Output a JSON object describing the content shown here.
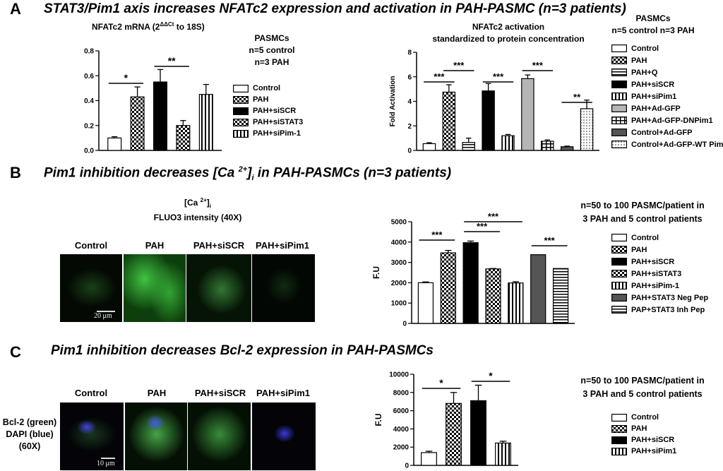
{
  "panels": {
    "A": {
      "letter": "A",
      "title": "STAT3/Pim1 axis increases NFATc2 expression and activation in PAH-PASMC (n=3 patients)"
    },
    "B": {
      "letter": "B",
      "title_pre": "Pim1 inhibition decreases [Ca ",
      "title_sup": "2+",
      "title_post": "]",
      "title_sub": "i",
      "title_end": " in PAH-PASMCs (n=3 patients)"
    },
    "C": {
      "letter": "C",
      "title": "Pim1 inhibition decreases Bcl-2 expression in PAH-PASMCs"
    }
  },
  "chartA1": {
    "heading_pre": "NFATc2 mRNA  (2",
    "heading_sup": "ΔΔCt",
    "heading_post": " to 18S)",
    "note1": "PASMCs",
    "note2": "n=5 control",
    "note3": "n=3 PAH"
  },
  "chartA2": {
    "heading1": "NFATc2 activation",
    "heading2": "standardized to protein concentration",
    "note1": "PASMCs",
    "note2": "n=5 control n=3 PAH"
  },
  "panelB": {
    "micro_title1_pre": "[Ca ",
    "micro_title1_sup": "2+",
    "micro_title1_post": "]",
    "micro_title1_sub": "i",
    "micro_title2": "FLUO3 intensity (40X)",
    "conditions": [
      "Control",
      "PAH",
      "PAH+siSCR",
      "PAH+siPim1"
    ],
    "scale_bar": "20 μm",
    "note1": "n=50 to 100 PASMC/patient  in",
    "note2": "3 PAH and 5 control patients"
  },
  "panelC": {
    "conditions": [
      "Control",
      "PAH",
      "PAH+siSCR",
      "PAH+siPim1"
    ],
    "stain1": "Bcl-2 (green)",
    "stain2": "DAPI (blue)",
    "stain3": "(60X)",
    "scale_bar": "10 μm",
    "note1": "n=50 to 100 PASMC/patient  in",
    "note2": "3 PAH and 5 control patients"
  },
  "chart_data": [
    {
      "type": "bar",
      "ylabel": "",
      "ylim": [
        0,
        0.8
      ],
      "yticks": [
        "0.0",
        "0.2",
        "0.4",
        "0.6",
        "0.8"
      ],
      "categories": [
        "Control",
        "PAH",
        "PAH+siSCR",
        "PAH+siSTAT3",
        "PAH+siPim-1"
      ],
      "values": [
        0.1,
        0.43,
        0.55,
        0.2,
        0.45
      ],
      "errors": [
        0.01,
        0.08,
        0.1,
        0.04,
        0.08
      ],
      "patterns": [
        "white",
        "check",
        "black",
        "check",
        "vstripe"
      ],
      "significance": [
        {
          "from": 0,
          "to": 1,
          "label": "*"
        },
        {
          "from": 2,
          "to": 3,
          "label": "**"
        }
      ],
      "legend": "right"
    },
    {
      "type": "bar",
      "ylabel": "Fold Activation",
      "ylim": [
        0,
        8
      ],
      "yticks": [
        "0",
        "2",
        "4",
        "6",
        "8"
      ],
      "categories": [
        "Control",
        "PAH",
        "PAH+Q",
        "PAH+siSCR",
        "PAH+siPim1",
        "PAH+Ad-GFP",
        "PAH+Ad-GFP-DNPim1",
        "Control+Ad-GFP",
        "Control+Ad-GFP-WT Pim1"
      ],
      "values": [
        0.55,
        4.75,
        0.65,
        4.85,
        1.2,
        5.85,
        0.75,
        0.3,
        3.4
      ],
      "errors": [
        0.08,
        0.6,
        0.35,
        0.6,
        0.1,
        0.3,
        0.1,
        0.05,
        0.7
      ],
      "patterns": [
        "white",
        "check",
        "hline",
        "black",
        "vstripe",
        "gray",
        "hbox",
        "darkgray",
        "dots"
      ],
      "significance": [
        {
          "from": 0,
          "to": 1,
          "label": "***",
          "level": 0
        },
        {
          "from": 1,
          "to": 2,
          "label": "***",
          "level": 1
        },
        {
          "from": 3,
          "to": 4,
          "label": "***",
          "level": 0
        },
        {
          "from": 5,
          "to": 6,
          "label": "***",
          "level": 1
        },
        {
          "from": 7,
          "to": 8,
          "label": "**",
          "level": 0
        }
      ],
      "legend": "right"
    },
    {
      "type": "bar",
      "ylabel": "F.U",
      "ylim": [
        0,
        5000
      ],
      "yticks": [
        "0",
        "1000",
        "2000",
        "3000",
        "4000",
        "5000"
      ],
      "categories": [
        "Control",
        "PAH",
        "PAH+siSCR",
        "PAH+siSTAT3",
        "PAH+siPim-1",
        "PAH+STAT3 Neg Pep",
        "PAP+STAT3 Inh Pep"
      ],
      "values": [
        2000,
        3470,
        3970,
        2680,
        1990,
        3380,
        2700
      ],
      "errors": [
        40,
        120,
        80,
        20,
        60,
        0,
        0
      ],
      "patterns": [
        "white",
        "check",
        "black",
        "check",
        "vstripe",
        "darkgray",
        "hline"
      ],
      "significance": [
        {
          "from": 0,
          "to": 1,
          "label": "***",
          "level": 0
        },
        {
          "from": 2,
          "to": 3,
          "label": "***",
          "level": 0
        },
        {
          "from": 2,
          "to": 4,
          "label": "***",
          "level": 1
        },
        {
          "from": 5,
          "to": 6,
          "label": "***",
          "level": 0
        }
      ],
      "legend": "right"
    },
    {
      "type": "bar",
      "ylabel": "F.U",
      "ylim": [
        0,
        10000
      ],
      "yticks": [
        "0",
        "2000",
        "4000",
        "6000",
        "8000",
        "10000"
      ],
      "categories": [
        "Control",
        "PAH",
        "PAH+siSCR",
        "PAH+siPim1"
      ],
      "values": [
        1400,
        6800,
        7100,
        2450
      ],
      "errors": [
        150,
        1200,
        1700,
        200
      ],
      "patterns": [
        "white",
        "check",
        "black",
        "vstripe"
      ],
      "significance": [
        {
          "from": 0,
          "to": 1,
          "label": "*"
        },
        {
          "from": 2,
          "to": 3,
          "label": "*"
        }
      ],
      "legend": "right"
    }
  ]
}
